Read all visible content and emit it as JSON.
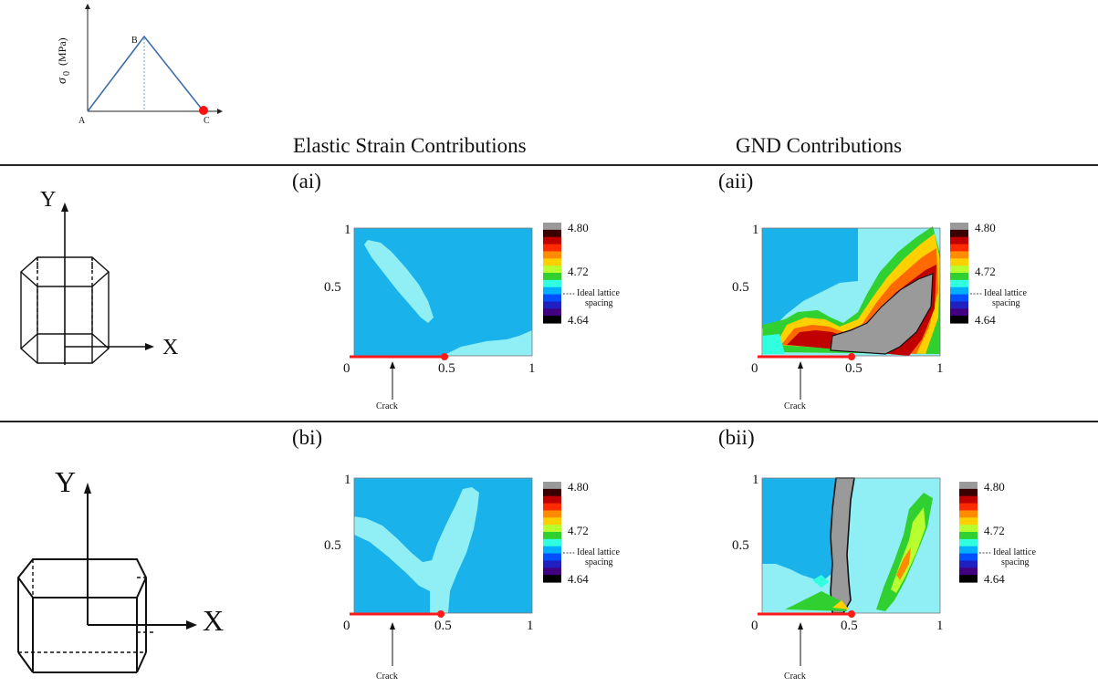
{
  "header": {
    "col1": "Elastic Strain Contributions",
    "col2": "GND Contributions"
  },
  "loading_graph": {
    "ylabel_symbol": "σ",
    "ylabel_sub": "0",
    "ylabel_unit": "(MPa)",
    "points": {
      "A": "A",
      "B": "B",
      "C": "C"
    }
  },
  "axes_icon": {
    "x": "X",
    "y": "Y"
  },
  "panels": {
    "ai": "(ai)",
    "aii": "(aii)",
    "bi": "(bi)",
    "bii": "(bii)"
  },
  "map_ticks": {
    "zero": "0",
    "half": "0.5",
    "one": "1",
    "crack": "Crack"
  },
  "colorbar": {
    "top": "4.80",
    "mid": "4.72",
    "bottom": "4.64",
    "ideal_line1": "Ideal lattice",
    "ideal_line2": "spacing",
    "colors": [
      "#9a9a9a",
      "#3a0000",
      "#c00000",
      "#ff2a00",
      "#ff8c00",
      "#ffd000",
      "#b8ff30",
      "#30d030",
      "#30ffe0",
      "#00b0ff",
      "#0050ff",
      "#2020c0",
      "#400080",
      "#000000"
    ]
  }
}
